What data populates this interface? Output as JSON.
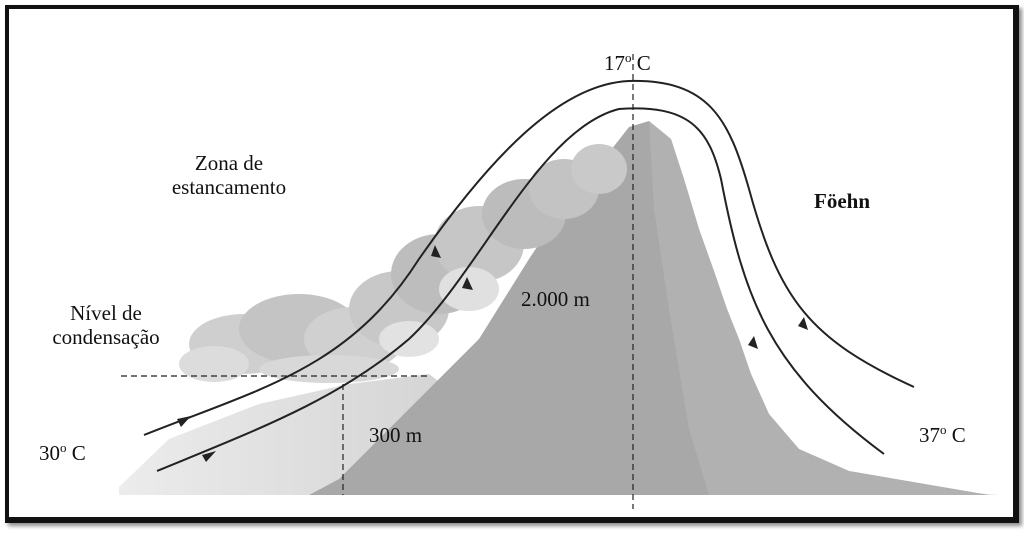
{
  "labels": {
    "top_temp": {
      "value": "17",
      "deg": "o",
      "unit": " C"
    },
    "zona_line1": "Zona de",
    "zona_line2": "estancamento",
    "foehn": "Föehn",
    "nivel_line1": "Nível de",
    "nivel_line2": "condensação",
    "altitude_peak": "2.000 m",
    "altitude_condensation": "300 m",
    "left_temp": {
      "value": "30",
      "deg": "o",
      "unit": " C"
    },
    "right_temp": {
      "value": "37",
      "deg": "o",
      "unit": " C"
    }
  },
  "colors": {
    "mountain": "#a9a9a9",
    "mountain_light": "#d6d6d6",
    "cloud": "#c9c9c9",
    "line": "#222222"
  }
}
